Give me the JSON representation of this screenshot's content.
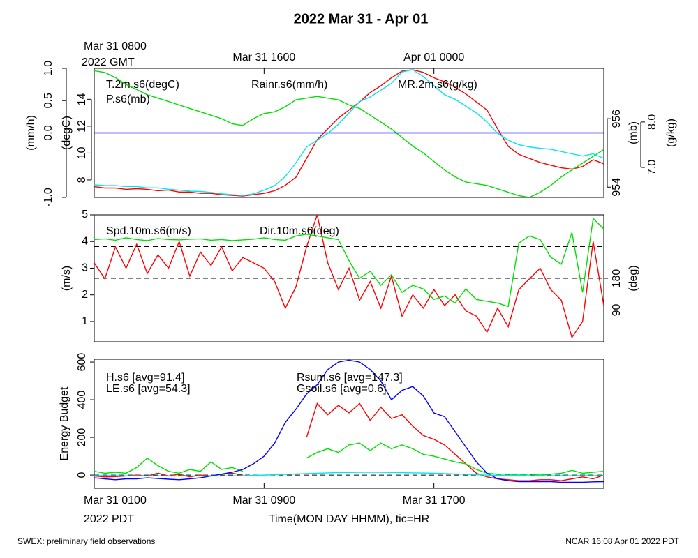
{
  "title": "2022 Mar 31 - Apr 01",
  "footer": {
    "left": "SWEX: preliminary field observations",
    "right": "NCAR 16:08 Apr 01 2022 PDT"
  },
  "chart_data": [
    {
      "type": "line",
      "xlim": [
        0,
        24
      ],
      "xticks_top": [
        {
          "value": 0,
          "label": "Mar 31 0800"
        },
        {
          "value": 8,
          "label": "Mar 31 1600"
        },
        {
          "value": 16,
          "label": "Apr 01 0000"
        }
      ],
      "x_top_sublabel": "2022 GMT",
      "x": [
        0,
        0.5,
        1,
        1.5,
        2,
        2.5,
        3,
        3.5,
        4,
        4.5,
        5,
        5.5,
        6,
        6.5,
        7,
        7.5,
        8,
        8.5,
        9,
        9.5,
        10,
        10.5,
        11,
        11.5,
        12,
        12.5,
        13,
        13.5,
        14,
        14.5,
        15,
        15.5,
        16,
        16.5,
        17,
        17.5,
        18,
        18.5,
        19,
        19.5,
        20,
        20.5,
        21,
        21.5,
        22,
        22.5,
        23,
        23.5,
        24
      ],
      "axes": [
        {
          "label": "(mm/h)",
          "lim": [
            -1,
            1
          ],
          "ticks": [
            {
              "value": -1,
              "label": "-1.0"
            },
            {
              "value": 0,
              "label": "0.0"
            },
            0.5,
            {
              "value": 1,
              "label": "1.0"
            }
          ]
        },
        {
          "label": "(degC)",
          "lim": [
            6.7,
            16.3
          ],
          "ticks": [
            8,
            10,
            12,
            14
          ]
        },
        {
          "label": "(mb)",
          "lim": [
            953.7,
            957.47
          ],
          "ticks": [
            954,
            956
          ]
        },
        {
          "label": "(g/kg)",
          "lim": [
            6.34,
            9.18
          ],
          "ticks": [
            {
              "value": 7,
              "label": "7.0"
            },
            {
              "value": 8,
              "label": "8.0"
            }
          ]
        }
      ],
      "dashed_lines": {
        "axis": 0,
        "values": [
          0
        ]
      },
      "series": [
        {
          "name": "T.2m.s6(degC)",
          "color": "#ff0000",
          "axis": 1,
          "values": [
            7.5,
            7.4,
            7.4,
            7.3,
            7.35,
            7.3,
            7.2,
            7.25,
            7.1,
            7.1,
            7.0,
            7.0,
            6.9,
            6.85,
            6.8,
            6.9,
            7.0,
            7.2,
            7.6,
            8.2,
            9.6,
            11.0,
            11.8,
            12.6,
            13.2,
            13.8,
            14.5,
            15.0,
            15.6,
            16.1,
            16.2,
            16.0,
            15.6,
            15.3,
            14.9,
            14.4,
            13.8,
            13.2,
            11.8,
            10.5,
            9.9,
            9.6,
            9.3,
            9.1,
            8.9,
            8.8,
            9.0,
            9.5,
            9.2
          ]
        },
        {
          "name": "P.s6(mb)",
          "color": "#00e000",
          "axis": 2,
          "values": [
            957.4,
            957.35,
            957.2,
            957.0,
            956.85,
            956.7,
            956.6,
            956.5,
            956.4,
            956.3,
            956.2,
            956.1,
            956.0,
            955.85,
            955.8,
            956.0,
            956.15,
            956.2,
            956.35,
            956.55,
            956.6,
            956.65,
            956.6,
            956.55,
            956.4,
            956.3,
            956.1,
            955.9,
            955.7,
            955.45,
            955.2,
            955.0,
            954.75,
            954.5,
            954.3,
            954.15,
            954.1,
            954.05,
            953.95,
            953.85,
            953.75,
            953.7,
            953.85,
            954.05,
            954.3,
            954.5,
            954.7,
            954.9,
            955.1
          ]
        },
        {
          "name": "Rainr.s6(mm/h)",
          "color": "#0000ff",
          "axis": 0,
          "values": [
            0,
            0,
            0,
            0,
            0,
            0,
            0,
            0,
            0,
            0,
            0,
            0,
            0,
            0,
            0,
            0,
            0,
            0,
            0,
            0,
            0,
            0,
            0,
            0,
            0,
            0,
            0,
            0,
            0,
            0,
            0,
            0,
            0,
            0,
            0,
            0,
            0,
            0,
            0,
            0,
            0,
            0,
            0,
            0,
            0,
            0,
            0,
            0,
            0
          ]
        },
        {
          "name": "MR.2m.s6(g/kg)",
          "color": "#00e5ee",
          "axis": 3,
          "values": [
            6.62,
            6.6,
            6.6,
            6.58,
            6.58,
            6.55,
            6.55,
            6.52,
            6.5,
            6.48,
            6.47,
            6.45,
            6.42,
            6.4,
            6.38,
            6.42,
            6.5,
            6.6,
            6.8,
            7.1,
            7.45,
            7.6,
            7.75,
            7.95,
            8.2,
            8.45,
            8.55,
            8.7,
            8.85,
            9.1,
            9.15,
            9.0,
            8.8,
            8.6,
            8.5,
            8.35,
            8.2,
            8.0,
            7.75,
            7.6,
            7.5,
            7.45,
            7.42,
            7.4,
            7.35,
            7.3,
            7.25,
            7.3,
            7.2
          ]
        }
      ]
    },
    {
      "type": "line",
      "xlim": [
        0,
        24
      ],
      "x": [
        0,
        0.5,
        1,
        1.5,
        2,
        2.5,
        3,
        3.5,
        4,
        4.5,
        5,
        5.5,
        6,
        6.5,
        7,
        7.5,
        8,
        8.5,
        9,
        9.5,
        10,
        10.5,
        11,
        11.5,
        12,
        12.5,
        13,
        13.5,
        14,
        14.5,
        15,
        15.5,
        16,
        16.5,
        17,
        17.5,
        18,
        18.5,
        19,
        19.5,
        20,
        20.5,
        21,
        21.5,
        22,
        22.5,
        23,
        23.5,
        24
      ],
      "axes": [
        {
          "label": "(m/s)",
          "lim": [
            0.24,
            5
          ],
          "ticks": [
            1,
            2,
            3,
            4,
            5
          ]
        },
        {
          "label": "(deg)",
          "lim": [
            0,
            360
          ],
          "ticks": [
            90,
            180
          ]
        }
      ],
      "dashed_lines": {
        "axis": 1,
        "values": [
          90,
          180,
          270
        ]
      },
      "series": [
        {
          "name": "Spd.10m.s6(m/s)",
          "color": "#ff0000",
          "axis": 0,
          "values": [
            3.2,
            2.6,
            3.8,
            3.0,
            3.9,
            2.8,
            3.5,
            3.0,
            4.0,
            2.7,
            3.6,
            3.1,
            3.8,
            2.9,
            3.4,
            3.2,
            3.0,
            2.5,
            1.5,
            2.3,
            3.8,
            5.0,
            3.2,
            2.2,
            3.0,
            1.8,
            2.5,
            1.5,
            2.7,
            1.2,
            2.0,
            1.5,
            2.2,
            1.6,
            2.0,
            1.4,
            1.2,
            0.6,
            1.5,
            0.8,
            2.2,
            2.6,
            3.0,
            2.2,
            1.8,
            0.4,
            1.0,
            4.0,
            1.6
          ]
        },
        {
          "name": "Dir.10m.s6(deg)",
          "color": "#00e000",
          "axis": 1,
          "values": [
            290,
            292,
            288,
            295,
            290,
            287,
            293,
            290,
            289,
            291,
            292,
            288,
            290,
            287,
            289,
            291,
            295,
            290,
            288,
            300,
            305,
            300,
            295,
            290,
            230,
            180,
            200,
            160,
            190,
            140,
            160,
            150,
            120,
            130,
            110,
            150,
            120,
            115,
            110,
            100,
            280,
            300,
            290,
            240,
            220,
            310,
            140,
            350,
            320
          ]
        }
      ]
    },
    {
      "type": "line",
      "xlim": [
        0,
        24
      ],
      "xticks": [
        {
          "value": 0,
          "label": "Mar 31 0100"
        },
        {
          "value": 8,
          "label": "Mar 31 0900"
        },
        {
          "value": 16,
          "label": "Mar 31 1700"
        }
      ],
      "x_sublabel": "2022 PDT",
      "xlabel": "Time(MON DAY HHMM), tic=HR",
      "x": [
        0,
        0.5,
        1,
        1.5,
        2,
        2.5,
        3,
        3.5,
        4,
        4.5,
        5,
        5.5,
        6,
        6.5,
        7,
        7.5,
        8,
        8.5,
        9,
        9.5,
        10,
        10.5,
        11,
        11.5,
        12,
        12.5,
        13,
        13.5,
        14,
        14.5,
        15,
        15.5,
        16,
        16.5,
        17,
        17.5,
        18,
        18.5,
        19,
        19.5,
        20,
        20.5,
        21,
        21.5,
        22,
        22.5,
        23,
        23.5,
        24
      ],
      "axes": [
        {
          "label": "Energy Budget",
          "lim": [
            -70,
            615
          ],
          "ticks": [
            0,
            200,
            400,
            600
          ]
        }
      ],
      "dashed_lines": {
        "axis": 0,
        "values": [
          0
        ]
      },
      "series": [
        {
          "name": "H.s6 [avg=91.4]",
          "color": "#ff0000",
          "axis": 0,
          "values": [
            -5,
            -10,
            -8,
            -5,
            0,
            -5,
            10,
            -5,
            5,
            -10,
            0,
            -5,
            5,
            10,
            0,
            null,
            null,
            null,
            null,
            null,
            200,
            380,
            320,
            370,
            330,
            380,
            290,
            360,
            300,
            320,
            260,
            210,
            190,
            160,
            110,
            60,
            10,
            -10,
            -20,
            -25,
            -30,
            -30,
            -25,
            -25,
            -30,
            -20,
            -10,
            -20,
            0
          ]
        },
        {
          "name": "LE.s6 [avg=54.3]",
          "color": "#00e000",
          "axis": 0,
          "values": [
            20,
            10,
            15,
            10,
            40,
            90,
            50,
            20,
            10,
            30,
            20,
            70,
            30,
            40,
            20,
            null,
            null,
            null,
            null,
            null,
            90,
            120,
            140,
            120,
            160,
            170,
            130,
            170,
            140,
            160,
            140,
            110,
            100,
            85,
            70,
            60,
            30,
            10,
            5,
            5,
            0,
            5,
            0,
            5,
            10,
            25,
            10,
            15,
            20
          ]
        },
        {
          "name": "Rsum.s6 [avg=147.3]",
          "color": "#0000ff",
          "axis": 0,
          "values": [
            -15,
            -20,
            -25,
            -20,
            -20,
            -15,
            -18,
            -22,
            -25,
            -20,
            -15,
            -5,
            5,
            15,
            30,
            60,
            100,
            170,
            280,
            350,
            430,
            480,
            560,
            600,
            610,
            600,
            560,
            500,
            400,
            450,
            470,
            420,
            330,
            310,
            230,
            150,
            70,
            10,
            -20,
            -30,
            -35,
            -35,
            -35,
            -35,
            -38,
            -38,
            -38,
            -36,
            -35
          ]
        },
        {
          "name": "Gsoil.s6 [avg=0.6]",
          "color": "#00e5ee",
          "axis": 0,
          "values": [
            -3,
            -3,
            -3,
            -4,
            -4,
            -4,
            -4,
            -5,
            -5,
            -5,
            -5,
            -5,
            -5,
            -4,
            -3,
            -2,
            0,
            2,
            4,
            6,
            8,
            10,
            12,
            13,
            14,
            15,
            15,
            15,
            14,
            13,
            12,
            11,
            10,
            8,
            6,
            4,
            2,
            0,
            -1,
            -2,
            -2,
            -3,
            -3,
            -3,
            -3,
            -3,
            -3,
            -3,
            -3
          ]
        }
      ]
    }
  ]
}
